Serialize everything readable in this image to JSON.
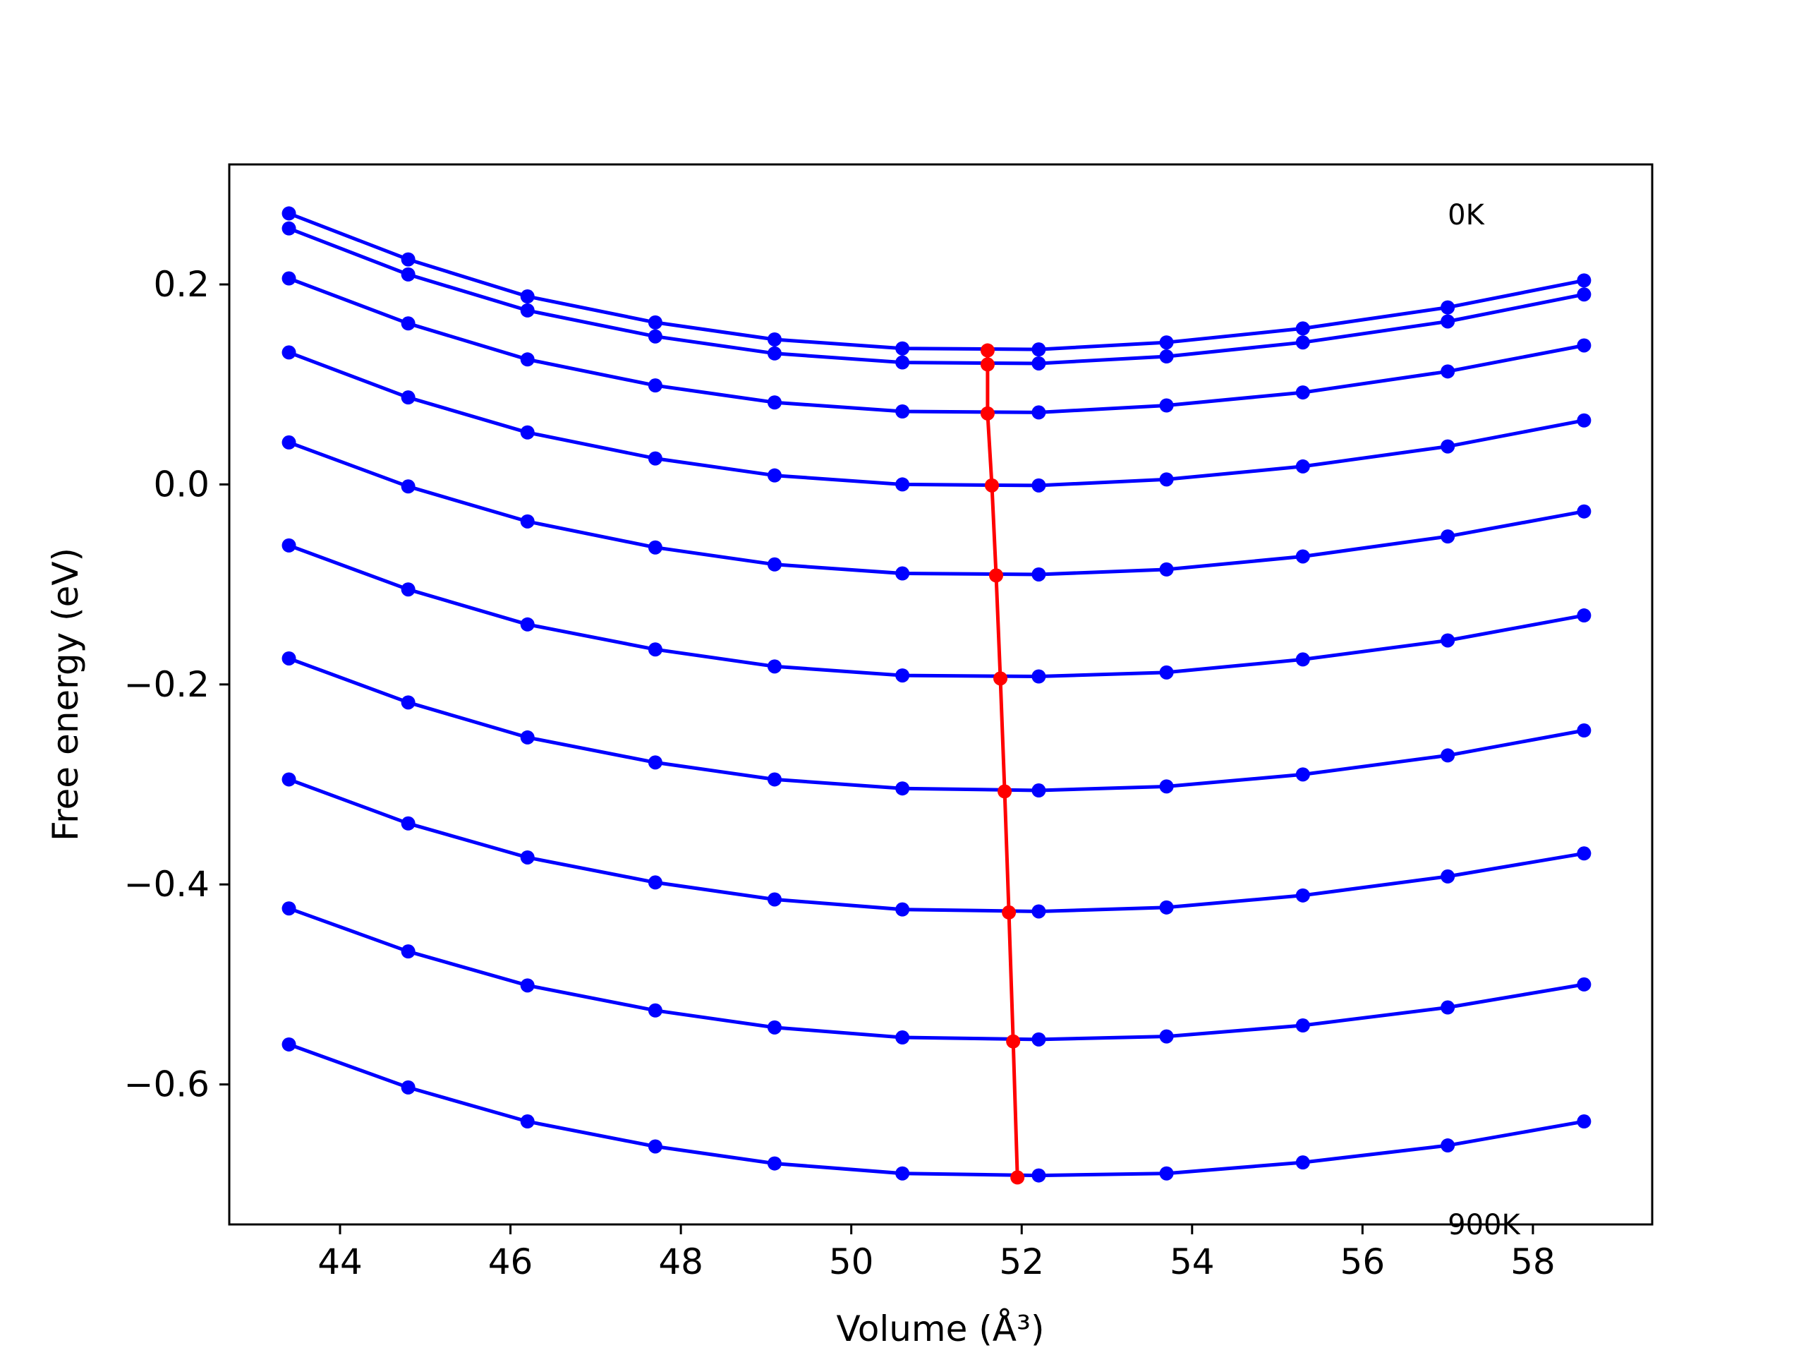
{
  "chart_data": {
    "type": "line",
    "xlabel": "Volume (Å³)",
    "ylabel": "Free energy (eV)",
    "xlim": [
      42.7,
      59.4
    ],
    "ylim": [
      -0.74,
      0.32
    ],
    "xticks": [
      44,
      46,
      48,
      50,
      52,
      54,
      56,
      58
    ],
    "xtick_labels": [
      "44",
      "46",
      "48",
      "50",
      "52",
      "54",
      "56",
      "58"
    ],
    "yticks": [
      0.2,
      0.0,
      -0.2,
      -0.4,
      -0.6
    ],
    "ytick_labels": [
      "0.2",
      "0.0",
      "−0.2",
      "−0.4",
      "−0.6"
    ],
    "annotations": [
      {
        "text": "0K",
        "x": 57.0,
        "y": 0.26
      },
      {
        "text": "900K",
        "x": 57.0,
        "y": -0.75
      }
    ],
    "grid": false,
    "volumes": [
      43.4,
      44.8,
      46.2,
      47.7,
      49.1,
      50.6,
      52.2,
      53.7,
      55.3,
      57.0,
      58.6
    ],
    "series": [
      {
        "values": [
          0.271,
          0.225,
          0.188,
          0.162,
          0.145,
          0.136,
          0.135,
          0.142,
          0.156,
          0.177,
          0.204
        ]
      },
      {
        "values": [
          0.256,
          0.21,
          0.174,
          0.148,
          0.131,
          0.122,
          0.121,
          0.128,
          0.142,
          0.163,
          0.19
        ]
      },
      {
        "values": [
          0.206,
          0.161,
          0.125,
          0.099,
          0.082,
          0.073,
          0.072,
          0.079,
          0.092,
          0.113,
          0.139
        ]
      },
      {
        "values": [
          0.132,
          0.087,
          0.052,
          0.026,
          0.009,
          0.0,
          -0.001,
          0.005,
          0.018,
          0.038,
          0.064
        ]
      },
      {
        "values": [
          0.042,
          -0.002,
          -0.037,
          -0.063,
          -0.08,
          -0.089,
          -0.09,
          -0.085,
          -0.072,
          -0.052,
          -0.027
        ]
      },
      {
        "values": [
          -0.061,
          -0.105,
          -0.14,
          -0.165,
          -0.182,
          -0.191,
          -0.192,
          -0.188,
          -0.175,
          -0.156,
          -0.131
        ]
      },
      {
        "values": [
          -0.174,
          -0.218,
          -0.253,
          -0.278,
          -0.295,
          -0.304,
          -0.306,
          -0.302,
          -0.29,
          -0.271,
          -0.246
        ]
      },
      {
        "values": [
          -0.295,
          -0.339,
          -0.373,
          -0.398,
          -0.415,
          -0.425,
          -0.427,
          -0.423,
          -0.411,
          -0.392,
          -0.369
        ]
      },
      {
        "values": [
          -0.424,
          -0.467,
          -0.501,
          -0.526,
          -0.543,
          -0.553,
          -0.555,
          -0.552,
          -0.541,
          -0.523,
          -0.5
        ]
      },
      {
        "values": [
          -0.56,
          -0.603,
          -0.637,
          -0.662,
          -0.679,
          -0.689,
          -0.691,
          -0.689,
          -0.678,
          -0.661,
          -0.637
        ]
      }
    ],
    "minima_series": {
      "x": [
        51.6,
        51.6,
        51.6,
        51.65,
        51.7,
        51.75,
        51.8,
        51.85,
        51.9,
        51.95
      ],
      "y": [
        0.134,
        0.12,
        0.071,
        -0.001,
        -0.091,
        -0.194,
        -0.307,
        -0.428,
        -0.557,
        -0.693
      ]
    },
    "colors": {
      "curves": "#0000ff",
      "minima": "#ff0000",
      "axes": "#000000"
    }
  }
}
